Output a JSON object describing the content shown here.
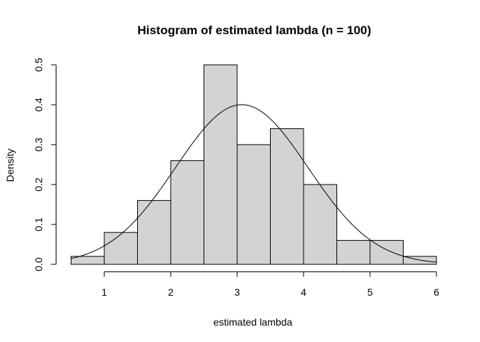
{
  "chart_data": {
    "type": "bar",
    "title": "Histogram of estimated lambda (n = 100)",
    "xlabel": "estimated lambda",
    "ylabel": "Density",
    "bins": [
      {
        "start": 0.5,
        "end": 1.0,
        "density": 0.02
      },
      {
        "start": 1.0,
        "end": 1.5,
        "density": 0.08
      },
      {
        "start": 1.5,
        "end": 2.0,
        "density": 0.16
      },
      {
        "start": 2.0,
        "end": 2.5,
        "density": 0.26
      },
      {
        "start": 2.5,
        "end": 3.0,
        "density": 0.5
      },
      {
        "start": 3.0,
        "end": 3.5,
        "density": 0.3
      },
      {
        "start": 3.5,
        "end": 4.0,
        "density": 0.34
      },
      {
        "start": 4.0,
        "end": 4.5,
        "density": 0.2
      },
      {
        "start": 4.5,
        "end": 5.0,
        "density": 0.06
      },
      {
        "start": 5.0,
        "end": 5.5,
        "density": 0.06
      },
      {
        "start": 5.5,
        "end": 6.0,
        "density": 0.02
      }
    ],
    "xlim": [
      0.5,
      6.0
    ],
    "ylim": [
      0,
      0.5
    ],
    "xticks": [
      "1",
      "2",
      "3",
      "4",
      "5",
      "6"
    ],
    "yticks": [
      "0.0",
      "0.1",
      "0.2",
      "0.3",
      "0.4",
      "0.5"
    ],
    "overlay_curve": {
      "type": "normal_density",
      "mean": 3.07,
      "sd": 0.997
    },
    "grid": false,
    "colors": {
      "bar_fill": "#d3d3d3",
      "bar_stroke": "#000000",
      "curve": "#000000"
    }
  }
}
